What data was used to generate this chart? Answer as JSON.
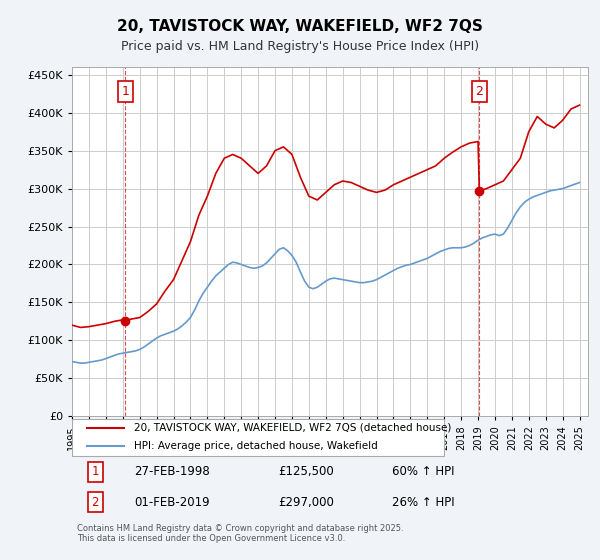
{
  "title": "20, TAVISTOCK WAY, WAKEFIELD, WF2 7QS",
  "subtitle": "Price paid vs. HM Land Registry's House Price Index (HPI)",
  "bg_color": "#f0f4f8",
  "plot_bg_color": "#ffffff",
  "grid_color": "#cccccc",
  "red_color": "#cc0000",
  "blue_color": "#6699cc",
  "ylim": [
    0,
    460000
  ],
  "yticks": [
    0,
    50000,
    100000,
    150000,
    200000,
    250000,
    300000,
    350000,
    400000,
    450000
  ],
  "xlim_start": 1995.0,
  "xlim_end": 2025.5,
  "purchase1_date": 1998.15,
  "purchase1_price": 125500,
  "purchase1_label": "1",
  "purchase2_date": 2019.08,
  "purchase2_price": 297000,
  "purchase2_label": "2",
  "legend_line1": "20, TAVISTOCK WAY, WAKEFIELD, WF2 7QS (detached house)",
  "legend_line2": "HPI: Average price, detached house, Wakefield",
  "table_row1": [
    "1",
    "27-FEB-1998",
    "£125,500",
    "60% ↑ HPI"
  ],
  "table_row2": [
    "2",
    "01-FEB-2019",
    "£297,000",
    "26% ↑ HPI"
  ],
  "footer": "Contains HM Land Registry data © Crown copyright and database right 2025.\nThis data is licensed under the Open Government Licence v3.0.",
  "hpi_data": {
    "years": [
      1995.0,
      1995.25,
      1995.5,
      1995.75,
      1996.0,
      1996.25,
      1996.5,
      1996.75,
      1997.0,
      1997.25,
      1997.5,
      1997.75,
      1998.0,
      1998.25,
      1998.5,
      1998.75,
      1999.0,
      1999.25,
      1999.5,
      1999.75,
      2000.0,
      2000.25,
      2000.5,
      2000.75,
      2001.0,
      2001.25,
      2001.5,
      2001.75,
      2002.0,
      2002.25,
      2002.5,
      2002.75,
      2003.0,
      2003.25,
      2003.5,
      2003.75,
      2004.0,
      2004.25,
      2004.5,
      2004.75,
      2005.0,
      2005.25,
      2005.5,
      2005.75,
      2006.0,
      2006.25,
      2006.5,
      2006.75,
      2007.0,
      2007.25,
      2007.5,
      2007.75,
      2008.0,
      2008.25,
      2008.5,
      2008.75,
      2009.0,
      2009.25,
      2009.5,
      2009.75,
      2010.0,
      2010.25,
      2010.5,
      2010.75,
      2011.0,
      2011.25,
      2011.5,
      2011.75,
      2012.0,
      2012.25,
      2012.5,
      2012.75,
      2013.0,
      2013.25,
      2013.5,
      2013.75,
      2014.0,
      2014.25,
      2014.5,
      2014.75,
      2015.0,
      2015.25,
      2015.5,
      2015.75,
      2016.0,
      2016.25,
      2016.5,
      2016.75,
      2017.0,
      2017.25,
      2017.5,
      2017.75,
      2018.0,
      2018.25,
      2018.5,
      2018.75,
      2019.0,
      2019.25,
      2019.5,
      2019.75,
      2020.0,
      2020.25,
      2020.5,
      2020.75,
      2021.0,
      2021.25,
      2021.5,
      2021.75,
      2022.0,
      2022.25,
      2022.5,
      2022.75,
      2023.0,
      2023.25,
      2023.5,
      2023.75,
      2024.0,
      2024.25,
      2024.5,
      2024.75,
      2025.0
    ],
    "values": [
      72000,
      71000,
      70000,
      70000,
      71000,
      72000,
      73000,
      74000,
      76000,
      78000,
      80000,
      82000,
      83000,
      84000,
      85000,
      86000,
      88000,
      91000,
      95000,
      99000,
      103000,
      106000,
      108000,
      110000,
      112000,
      115000,
      119000,
      124000,
      130000,
      140000,
      152000,
      162000,
      170000,
      178000,
      185000,
      190000,
      195000,
      200000,
      203000,
      202000,
      200000,
      198000,
      196000,
      195000,
      196000,
      198000,
      202000,
      208000,
      214000,
      220000,
      222000,
      218000,
      212000,
      203000,
      190000,
      178000,
      170000,
      168000,
      170000,
      174000,
      178000,
      181000,
      182000,
      181000,
      180000,
      179000,
      178000,
      177000,
      176000,
      176000,
      177000,
      178000,
      180000,
      183000,
      186000,
      189000,
      192000,
      195000,
      197000,
      199000,
      200000,
      202000,
      204000,
      206000,
      208000,
      211000,
      214000,
      217000,
      219000,
      221000,
      222000,
      222000,
      222000,
      223000,
      225000,
      228000,
      232000,
      235000,
      237000,
      239000,
      240000,
      238000,
      240000,
      248000,
      258000,
      268000,
      276000,
      282000,
      286000,
      289000,
      291000,
      293000,
      295000,
      297000,
      298000,
      299000,
      300000,
      302000,
      304000,
      306000,
      308000
    ]
  },
  "house_data": {
    "years": [
      1995.0,
      1995.5,
      1996.0,
      1996.5,
      1997.0,
      1997.5,
      1997.75,
      1998.0,
      1998.15,
      1998.5,
      1999.0,
      1999.5,
      2000.0,
      2000.5,
      2001.0,
      2001.5,
      2002.0,
      2002.5,
      2003.0,
      2003.5,
      2004.0,
      2004.5,
      2005.0,
      2005.5,
      2006.0,
      2006.5,
      2007.0,
      2007.5,
      2008.0,
      2008.5,
      2009.0,
      2009.5,
      2010.0,
      2010.5,
      2011.0,
      2011.5,
      2012.0,
      2012.5,
      2013.0,
      2013.5,
      2014.0,
      2014.5,
      2015.0,
      2015.5,
      2016.0,
      2016.5,
      2017.0,
      2017.5,
      2018.0,
      2018.5,
      2019.0,
      2019.08,
      2019.5,
      2020.0,
      2020.5,
      2021.0,
      2021.5,
      2022.0,
      2022.5,
      2023.0,
      2023.5,
      2024.0,
      2024.5,
      2025.0
    ],
    "values": [
      120000,
      117000,
      118000,
      120000,
      122000,
      125000,
      126000,
      127000,
      125500,
      128000,
      130000,
      138000,
      148000,
      165000,
      180000,
      205000,
      230000,
      265000,
      290000,
      320000,
      340000,
      345000,
      340000,
      330000,
      320000,
      330000,
      350000,
      355000,
      345000,
      315000,
      290000,
      285000,
      295000,
      305000,
      310000,
      308000,
      303000,
      298000,
      295000,
      298000,
      305000,
      310000,
      315000,
      320000,
      325000,
      330000,
      340000,
      348000,
      355000,
      360000,
      362000,
      297000,
      300000,
      305000,
      310000,
      325000,
      340000,
      375000,
      395000,
      385000,
      380000,
      390000,
      405000,
      410000
    ]
  }
}
